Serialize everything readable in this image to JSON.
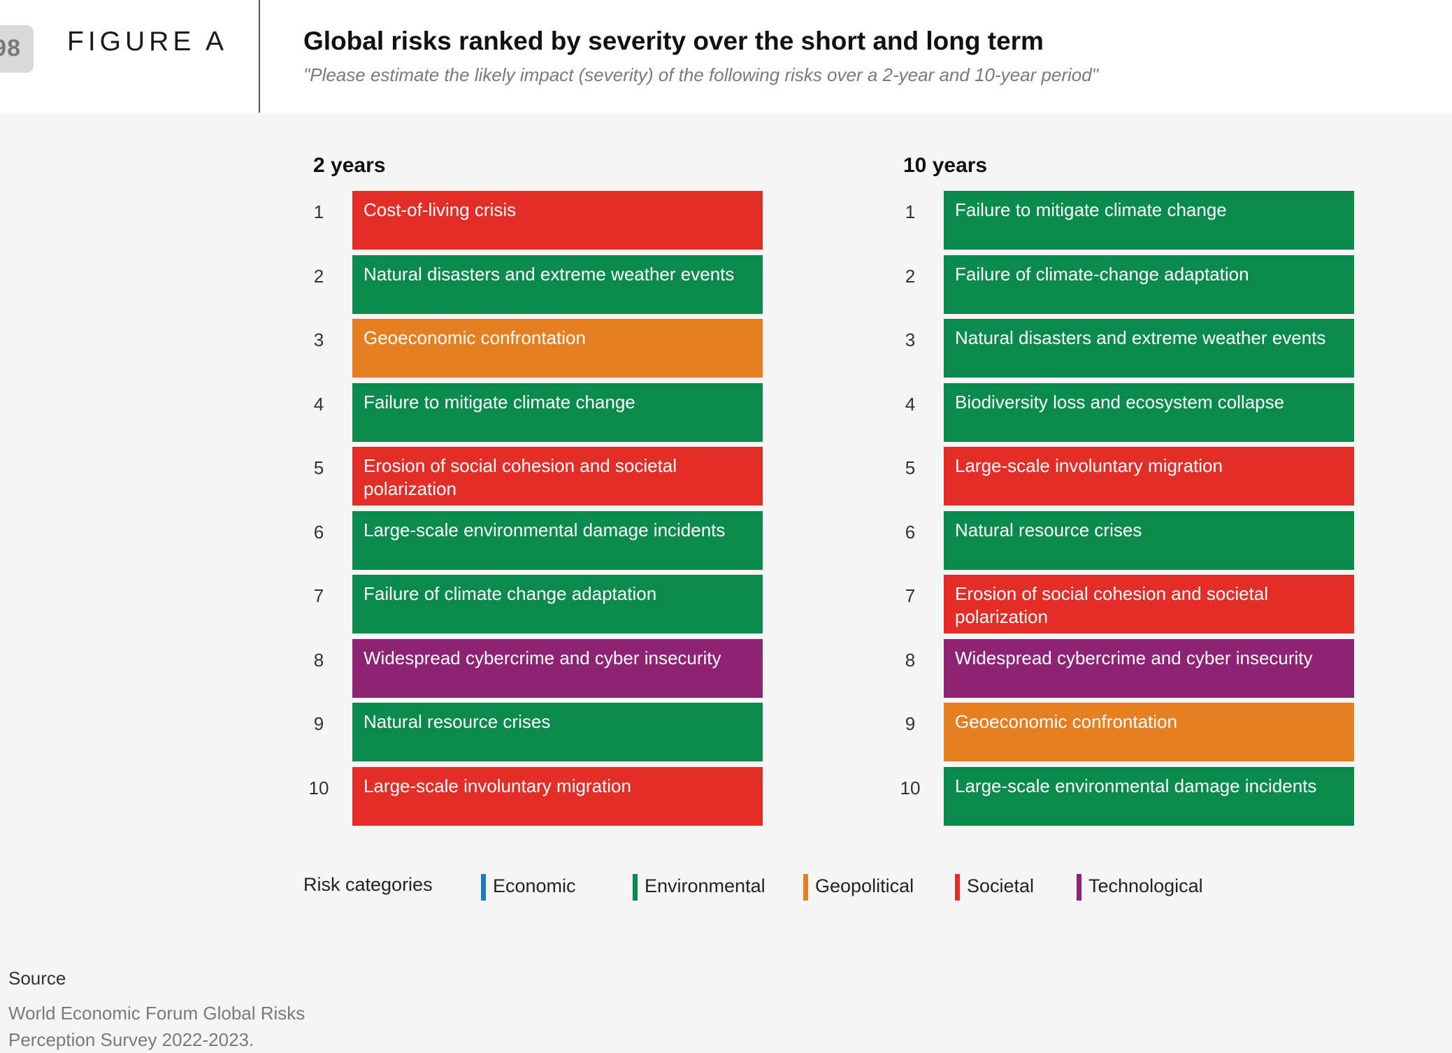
{
  "header": {
    "page_number": "98",
    "figure_label": "FIGURE A",
    "title": "Global risks ranked by severity over the short and long term",
    "subtitle": "\"Please estimate the likely impact (severity) of the following risks over a 2-year and 10-year period\""
  },
  "chart_data": {
    "type": "table",
    "title": "Global risks ranked by severity over the short and long term",
    "columns": [
      {
        "name": "2 years",
        "items": [
          {
            "rank": "1",
            "label": "Cost-of-living crisis",
            "category": "Societal"
          },
          {
            "rank": "2",
            "label": "Natural disasters and extreme weather events",
            "category": "Environmental"
          },
          {
            "rank": "3",
            "label": "Geoeconomic confrontation",
            "category": "Geopolitical"
          },
          {
            "rank": "4",
            "label": "Failure to mitigate climate change",
            "category": "Environmental"
          },
          {
            "rank": "5",
            "label": "Erosion of social cohesion and societal polarization",
            "category": "Societal"
          },
          {
            "rank": "6",
            "label": "Large-scale environmental damage incidents",
            "category": "Environmental"
          },
          {
            "rank": "7",
            "label": "Failure of climate change adaptation",
            "category": "Environmental"
          },
          {
            "rank": "8",
            "label": "Widespread cybercrime and cyber insecurity",
            "category": "Technological"
          },
          {
            "rank": "9",
            "label": "Natural resource crises",
            "category": "Environmental"
          },
          {
            "rank": "10",
            "label": "Large-scale involuntary migration",
            "category": "Societal"
          }
        ]
      },
      {
        "name": "10 years",
        "items": [
          {
            "rank": "1",
            "label": "Failure to mitigate climate change",
            "category": "Environmental"
          },
          {
            "rank": "2",
            "label": "Failure of climate-change adaptation",
            "category": "Environmental"
          },
          {
            "rank": "3",
            "label": "Natural disasters and extreme weather events",
            "category": "Environmental"
          },
          {
            "rank": "4",
            "label": "Biodiversity loss and ecosystem collapse",
            "category": "Environmental"
          },
          {
            "rank": "5",
            "label": "Large-scale involuntary migration",
            "category": "Societal"
          },
          {
            "rank": "6",
            "label": "Natural resource crises",
            "category": "Environmental"
          },
          {
            "rank": "7",
            "label": "Erosion of social cohesion and societal polarization",
            "category": "Societal"
          },
          {
            "rank": "8",
            "label": "Widespread cybercrime and cyber insecurity",
            "category": "Technological"
          },
          {
            "rank": "9",
            "label": "Geoeconomic confrontation",
            "category": "Geopolitical"
          },
          {
            "rank": "10",
            "label": "Large-scale environmental damage incidents",
            "category": "Environmental"
          }
        ]
      }
    ],
    "legend": {
      "title": "Risk categories",
      "items": [
        {
          "name": "Economic",
          "color": "#1a7ac4"
        },
        {
          "name": "Environmental",
          "color": "#0b8a4d"
        },
        {
          "name": "Geopolitical",
          "color": "#e67e22"
        },
        {
          "name": "Societal",
          "color": "#e32d26"
        },
        {
          "name": "Technological",
          "color": "#8e2373"
        }
      ]
    }
  },
  "source": {
    "heading": "Source",
    "text": "World Economic Forum Global Risks Perception Survey 2022-2023."
  }
}
